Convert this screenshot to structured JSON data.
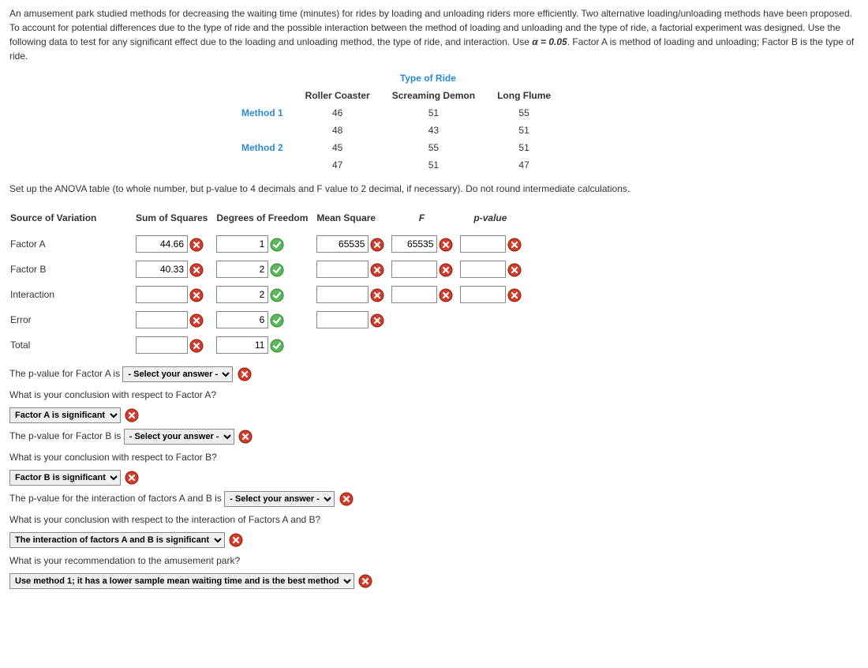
{
  "intro": {
    "text": "An amusement park studied methods for decreasing the waiting time (minutes) for rides by loading and unloading riders more efficiently. Two alternative loading/unloading methods have been proposed. To account for potential differences due to the type of ride and the possible interaction between the method of loading and unloading and the type of ride, a factorial experiment was designed. Use the following data to test for any significant effect due to the loading and unloading method, the type of ride, and interaction. Use ",
    "alpha": "α = 0.05",
    "text2": ". Factor A is method of loading and unloading; Factor B is the type of ride."
  },
  "dataTable": {
    "header": "Type of Ride",
    "cols": [
      "Roller Coaster",
      "Screaming Demon",
      "Long Flume"
    ],
    "method1": "Method 1",
    "method2": "Method 2",
    "rows": [
      [
        "46",
        "51",
        "55"
      ],
      [
        "48",
        "43",
        "51"
      ],
      [
        "45",
        "55",
        "51"
      ],
      [
        "47",
        "51",
        "47"
      ]
    ]
  },
  "instr": "Set up the ANOVA table (to whole number, but p-value to 4 decimals and F value to 2 decimal, if necessary). Do not round intermediate calculations.",
  "anova": {
    "headers": [
      "Source of Variation",
      "Sum of Squares",
      "Degrees of Freedom",
      "Mean Square",
      "F",
      "p-value"
    ],
    "rows": [
      {
        "label": "Factor A",
        "ss": "44.66",
        "ssIcon": "x",
        "df": "1",
        "dfIcon": "c",
        "ms": "65535",
        "msIcon": "x",
        "f": "65535",
        "fIcon": "x",
        "p": "",
        "pIcon": "x"
      },
      {
        "label": "Factor B",
        "ss": "40.33",
        "ssIcon": "x",
        "df": "2",
        "dfIcon": "c",
        "ms": "",
        "msIcon": "x",
        "f": "",
        "fIcon": "x",
        "p": "",
        "pIcon": "x"
      },
      {
        "label": "Interaction",
        "ss": "",
        "ssIcon": "x",
        "df": "2",
        "dfIcon": "c",
        "ms": "",
        "msIcon": "x",
        "f": "",
        "fIcon": "x",
        "p": "",
        "pIcon": "x"
      },
      {
        "label": "Error",
        "ss": "",
        "ssIcon": "x",
        "df": "6",
        "dfIcon": "c",
        "ms": "",
        "msIcon": "x"
      },
      {
        "label": "Total",
        "ss": "",
        "ssIcon": "x",
        "df": "11",
        "dfIcon": "c"
      }
    ]
  },
  "q": {
    "q1a": "The p-value for Factor A is",
    "q1sel": "- Select your answer -",
    "q1b": "What is your conclusion with respect to Factor A?",
    "q1ans": "Factor A is significant",
    "q2a": "The p-value for Factor B is",
    "q2sel": "- Select your answer -",
    "q2b": "What is your conclusion with respect to Factor B?",
    "q2ans": "Factor B is significant",
    "q3a": "The p-value for the interaction of factors A and B is",
    "q3sel": "- Select your answer -",
    "q3b": "What is your conclusion with respect to the interaction of Factors A and B?",
    "q3ans": "The interaction of factors A and B is significant",
    "q4a": "What is your recommendation to the amusement park?",
    "q4ans": "Use method 1; it has a lower sample mean waiting time and is the best method"
  }
}
